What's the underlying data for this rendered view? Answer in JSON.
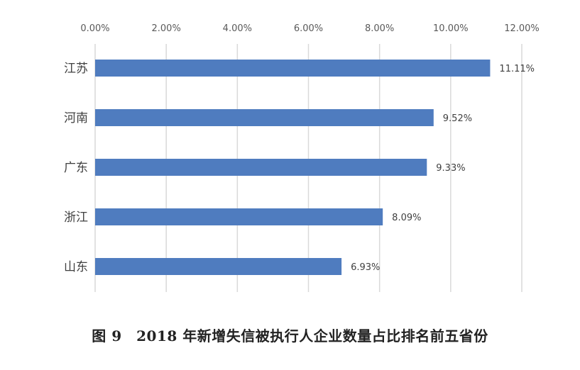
{
  "caption": "图 9　2018 年新增失信被执行人企业数量占比排名前五省份",
  "chart_data": {
    "type": "bar",
    "orientation": "horizontal",
    "categories": [
      "江苏",
      "河南",
      "广东",
      "浙江",
      "山东"
    ],
    "values": [
      11.11,
      9.52,
      9.33,
      8.09,
      6.93
    ],
    "data_labels": [
      "11.11%",
      "9.52%",
      "9.33%",
      "8.09%",
      "6.93%"
    ],
    "xlim": [
      0,
      12
    ],
    "x_ticks": [
      0,
      2,
      4,
      6,
      8,
      10,
      12
    ],
    "x_tick_labels": [
      "0.00%",
      "2.00%",
      "4.00%",
      "6.00%",
      "8.00%",
      "10.00%",
      "12.00%"
    ],
    "x_axis_position": "top",
    "grid": "vertical",
    "legend": "none",
    "bar_color": "#4F7CBF",
    "grid_color": "#D9D9D9"
  }
}
